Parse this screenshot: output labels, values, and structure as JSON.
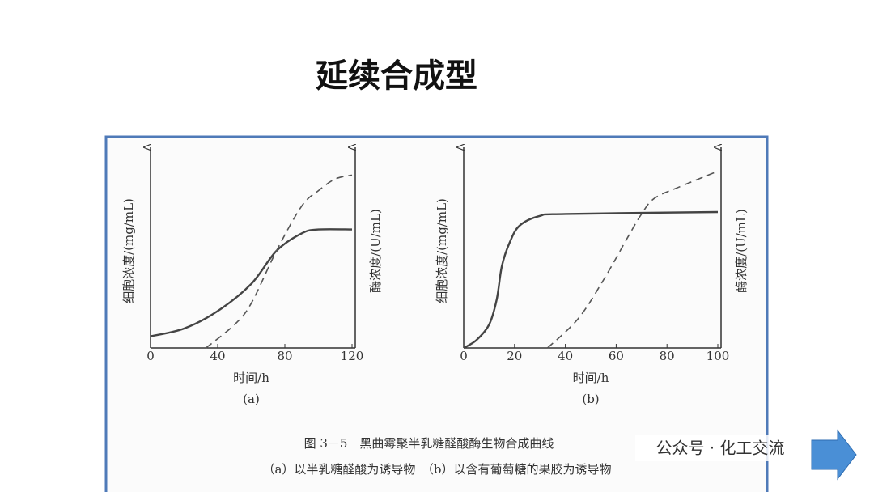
{
  "title": "延续合成型",
  "chart_data": [
    {
      "type": "line",
      "sublabel": "(a)",
      "x_label": "时间/h",
      "y_label": "细胞浓度/(mg/mL)",
      "y2_label": "酶浓度/(U/mL)",
      "xlim": [
        0,
        120
      ],
      "xticks": [
        0,
        40,
        80,
        120
      ],
      "ylim": [
        0,
        100
      ],
      "y2lim": [
        0,
        100
      ],
      "series": [
        {
          "style": "solid",
          "color": "#444",
          "x": [
            0,
            20,
            40,
            60,
            75,
            90,
            100,
            120
          ],
          "values": [
            6,
            10,
            19,
            33,
            50,
            59,
            61,
            61
          ]
        },
        {
          "style": "dashed",
          "color": "#555",
          "axis": "y2",
          "x": [
            33,
            50,
            60,
            75,
            90,
            100,
            110,
            120
          ],
          "values": [
            0,
            12,
            23,
            50,
            73,
            81,
            87,
            89
          ]
        }
      ]
    },
    {
      "type": "line",
      "sublabel": "(b)",
      "x_label": "时间/h",
      "y_label": "细胞浓度/(mg/mL)",
      "y2_label": "酶浓度/(U/mL)",
      "xlim": [
        0,
        100
      ],
      "xticks": [
        0,
        20,
        40,
        60,
        80,
        100
      ],
      "ylim": [
        0,
        100
      ],
      "y2lim": [
        0,
        100
      ],
      "series": [
        {
          "style": "solid",
          "color": "#444",
          "x": [
            0,
            5,
            10,
            13,
            15,
            18,
            22,
            30,
            40,
            100
          ],
          "values": [
            0,
            4,
            12,
            25,
            42,
            54,
            63,
            68,
            69,
            70
          ]
        },
        {
          "style": "dashed",
          "color": "#555",
          "axis": "y2",
          "x": [
            33,
            45,
            55,
            65,
            70,
            75,
            85,
            100
          ],
          "values": [
            0,
            15,
            35,
            58,
            69,
            77,
            83,
            91
          ]
        }
      ]
    }
  ],
  "caption": "图 3－5　黑曲霉聚半乳糖醛酸酶生物合成曲线",
  "caption_note": "（a）以半乳糖醛酸为诱导物　（b）以含有葡萄糖的果胶为诱导物",
  "watermark": "公众号 · 化工交流"
}
